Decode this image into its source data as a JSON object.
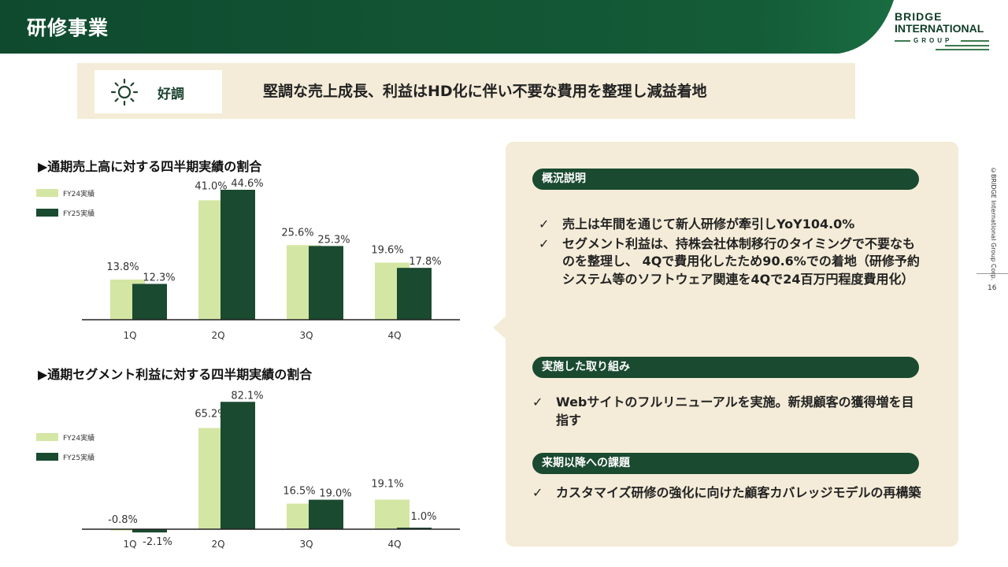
{
  "header": {
    "title": "研修事業"
  },
  "logo": {
    "line1": "BRIDGE",
    "line2": "INTERNATIONAL",
    "line3": "GROUP"
  },
  "colors": {
    "fy24": "#d4e6a3",
    "fy25": "#1a4a30",
    "panel_bg": "#f4ecd8",
    "header_green": "#0f4a2e"
  },
  "banner": {
    "icon": "sun-icon",
    "badge": "好調",
    "headline": "堅調な売上成長、利益はHD化に伴い不要な費用を整理し減益着地"
  },
  "sales_chart_title": "▶通期売上高に対する四半期実績の割合",
  "profit_chart_title": "▶通期セグメント利益に対する四半期実績の割合",
  "chart_data": [
    {
      "type": "bar",
      "categories": [
        "1Q",
        "2Q",
        "3Q",
        "4Q"
      ],
      "series": [
        {
          "name": "FY24実績",
          "values": [
            13.8,
            41.0,
            25.6,
            19.6
          ]
        },
        {
          "name": "FY25実績",
          "values": [
            12.3,
            44.6,
            25.3,
            17.8
          ]
        }
      ],
      "data_labels": {
        "FY24実績": [
          "13.8%",
          "41.0%",
          "25.6%",
          "19.6%"
        ],
        "FY25実績": [
          "12.3%",
          "44.6%",
          "25.3%",
          "17.8%"
        ]
      },
      "title": "▶通期売上高に対する四半期実績の割合",
      "ylim": [
        0,
        50
      ],
      "grid": false,
      "legend": "top-left"
    },
    {
      "type": "bar",
      "categories": [
        "1Q",
        "2Q",
        "3Q",
        "4Q"
      ],
      "series": [
        {
          "name": "FY24実績",
          "values": [
            -0.8,
            65.2,
            16.5,
            19.1
          ]
        },
        {
          "name": "FY25実績",
          "values": [
            -2.1,
            82.1,
            19.0,
            1.0
          ]
        }
      ],
      "data_labels": {
        "FY24実績": [
          "-0.8%",
          "65.2%",
          "16.5%",
          "19.1%"
        ],
        "FY25実績": [
          "-2.1%",
          "82.1%",
          "19.0%",
          "1.0%"
        ]
      },
      "title": "▶通期セグメント利益に対する四半期実績の割合",
      "ylim": [
        -5,
        90
      ],
      "grid": false,
      "legend": "left"
    }
  ],
  "sections": [
    {
      "title": "概況説明",
      "bullets": [
        "売上は年間を通じて新人研修が牽引しYoY104.0%",
        "セグメント利益は、持株会社体制移行のタイミングで不要なものを整理し、 4Qで費用化したため90.6%での着地（研修予約システム等のソフトウェア関連を4Qで24百万円程度費用化）"
      ]
    },
    {
      "title": "実施した取り組み",
      "bullets": [
        "Webサイトのフルリニューアルを実施。新規顧客の獲得増を目指す"
      ]
    },
    {
      "title": "来期以降への課題",
      "bullets": [
        "カスタマイズ研修の強化に向けた顧客カバレッジモデルの再構築"
      ]
    }
  ],
  "check_mark": "✓",
  "side_text": "©BRIDGE International Group Corp.",
  "page_number": "16"
}
